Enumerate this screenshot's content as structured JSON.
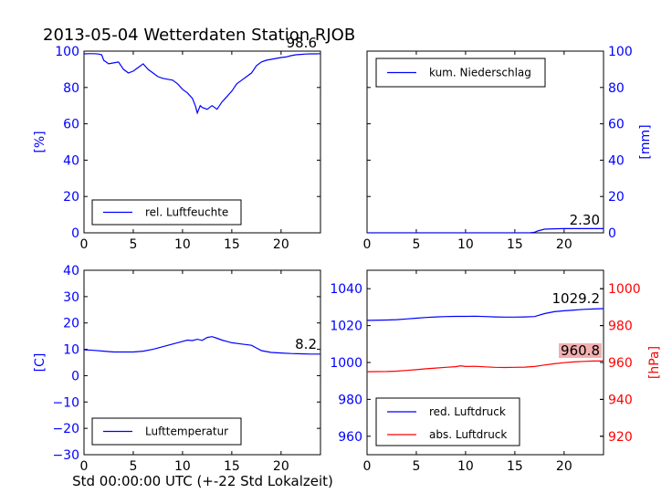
{
  "figure": {
    "title": "2013-05-04 Wetterdaten Station RJOB",
    "xlabel": "Std 00:00:00 UTC (+-22 Std Lokalzeit)"
  },
  "colors": {
    "blue": "#0000ff",
    "red": "#ff0000",
    "black": "#000000",
    "badge_red": "#f2b0b0"
  },
  "chart_data": [
    {
      "id": "humidity",
      "type": "line",
      "xlim": [
        0,
        24
      ],
      "ylim": [
        0,
        100
      ],
      "xticks": [
        "0",
        "5",
        "10",
        "15",
        "20"
      ],
      "yticks": [
        "0",
        "20",
        "40",
        "60",
        "80",
        "100"
      ],
      "ylabel": "[%]",
      "yaxis_side": "left",
      "legend_position": "lower-left",
      "series": [
        {
          "name": "rel. Luftfeuchte",
          "color": "#0000ff",
          "x": [
            0,
            0.5,
            1,
            1.5,
            1.8,
            2,
            2.5,
            3,
            3.5,
            4,
            4.5,
            5,
            5.5,
            6,
            6.5,
            7,
            7.5,
            8,
            8.5,
            9,
            9.5,
            10,
            10.5,
            11,
            11.3,
            11.5,
            11.8,
            12,
            12.5,
            13,
            13.5,
            14,
            14.5,
            15,
            15.5,
            16,
            16.5,
            17,
            17.5,
            18,
            18.5,
            19,
            19.5,
            20,
            20.5,
            21,
            21.5,
            22,
            22.5,
            23,
            23.5,
            24
          ],
          "y": [
            98.5,
            98.6,
            98.6,
            98.4,
            98,
            95,
            93,
            93.5,
            94,
            90,
            88,
            89,
            91,
            93,
            90,
            88,
            86,
            85,
            84.5,
            84,
            82,
            79,
            77,
            74,
            70,
            66,
            70,
            69,
            68,
            70,
            68,
            72,
            75,
            78,
            82,
            84,
            86,
            88,
            92,
            94,
            95,
            95.5,
            96,
            96.5,
            96.8,
            97.5,
            98,
            98.2,
            98.4,
            98.5,
            98.5,
            98.6
          ]
        }
      ],
      "last_value_label": "98.6",
      "last_value_color": "#000000"
    },
    {
      "id": "precip",
      "type": "line",
      "xlim": [
        0,
        24
      ],
      "ylim": [
        0,
        100
      ],
      "xticks": [
        "0",
        "5",
        "10",
        "15",
        "20"
      ],
      "yticks": [
        "0",
        "20",
        "40",
        "60",
        "80",
        "100"
      ],
      "ylabel": "[mm]",
      "yaxis_side": "right",
      "legend_position": "upper-left",
      "series": [
        {
          "name": "kum. Niederschlag",
          "color": "#0000ff",
          "x": [
            0,
            5,
            10,
            15,
            16.5,
            17,
            17.3,
            18,
            19,
            20,
            21,
            22,
            23,
            24
          ],
          "y": [
            0,
            0,
            0,
            0,
            0,
            0.3,
            1,
            2,
            2.2,
            2.3,
            2.3,
            2.3,
            2.3,
            2.3
          ]
        }
      ],
      "last_value_label": "2.30",
      "last_value_color": "#000000"
    },
    {
      "id": "temperature",
      "type": "line",
      "xlim": [
        0,
        24
      ],
      "ylim": [
        -30,
        40
      ],
      "xticks": [
        "0",
        "5",
        "10",
        "15",
        "20"
      ],
      "yticks": [
        "−30",
        "−20",
        "−10",
        "0",
        "10",
        "20",
        "30",
        "40"
      ],
      "ylabel": "[C]",
      "yaxis_side": "left",
      "legend_position": "lower-left",
      "series": [
        {
          "name": "Lufttemperatur",
          "color": "#0000ff",
          "x": [
            0,
            1,
            2,
            3,
            4,
            5,
            6,
            7,
            8,
            9,
            10,
            10.5,
            11,
            11.5,
            12,
            12.5,
            13,
            13.5,
            14,
            14.5,
            15,
            16,
            17,
            17.5,
            18,
            19,
            20,
            21,
            22,
            23,
            24
          ],
          "y": [
            9.8,
            9.6,
            9.3,
            9,
            9,
            9,
            9.3,
            10,
            11,
            12,
            13,
            13.5,
            13.3,
            13.8,
            13.4,
            14.5,
            14.8,
            14.2,
            13.5,
            13,
            12.5,
            12,
            11.5,
            10.5,
            9.5,
            8.8,
            8.6,
            8.4,
            8.3,
            8.2,
            8.2
          ]
        }
      ],
      "last_value_label": "8.2",
      "last_value_color": "#000000"
    },
    {
      "id": "pressure",
      "type": "line",
      "xlim": [
        0,
        24
      ],
      "ylim": [
        950,
        1050
      ],
      "y2lim": [
        910,
        1010
      ],
      "xticks": [
        "0",
        "5",
        "10",
        "15",
        "20"
      ],
      "yticks": [
        "960",
        "980",
        "1000",
        "1020",
        "1040"
      ],
      "y2ticks": [
        "920",
        "940",
        "960",
        "980",
        "1000"
      ],
      "ylabel": "",
      "y2label": "[hPa]",
      "legend_position": "lower-left",
      "series": [
        {
          "name": "red. Luftdruck",
          "color": "#0000ff",
          "axis": "left",
          "x": [
            0,
            2,
            3,
            4,
            5,
            6,
            7,
            8,
            9,
            10,
            11,
            12,
            13,
            14,
            15,
            16,
            17,
            18,
            19,
            20,
            21,
            22,
            23,
            24
          ],
          "y": [
            1022.8,
            1023,
            1023.2,
            1023.6,
            1024,
            1024.4,
            1024.7,
            1024.9,
            1025,
            1025,
            1025.1,
            1024.9,
            1024.7,
            1024.6,
            1024.6,
            1024.7,
            1024.9,
            1026.5,
            1027.5,
            1028,
            1028.4,
            1028.8,
            1029,
            1029.2
          ]
        },
        {
          "name": "abs. Luftdruck",
          "color": "#ff0000",
          "axis": "right",
          "x": [
            0,
            2,
            3,
            4,
            5,
            6,
            7,
            8,
            9,
            9.5,
            10,
            11,
            12,
            13,
            14,
            15,
            16,
            17,
            18,
            19,
            20,
            21,
            22,
            23,
            24
          ],
          "y": [
            955,
            955.1,
            955.3,
            955.7,
            956.1,
            956.6,
            957,
            957.4,
            957.7,
            958.2,
            957.8,
            957.9,
            957.6,
            957.4,
            957.3,
            957.4,
            957.5,
            957.8,
            958.6,
            959.3,
            959.9,
            960.3,
            960.6,
            960.8,
            960.8
          ]
        }
      ],
      "last_value_labels": [
        {
          "text": "1029.2",
          "color": "#000000"
        },
        {
          "text": "960.8",
          "color": "#000000",
          "background": "#f2b0b0"
        }
      ]
    }
  ]
}
